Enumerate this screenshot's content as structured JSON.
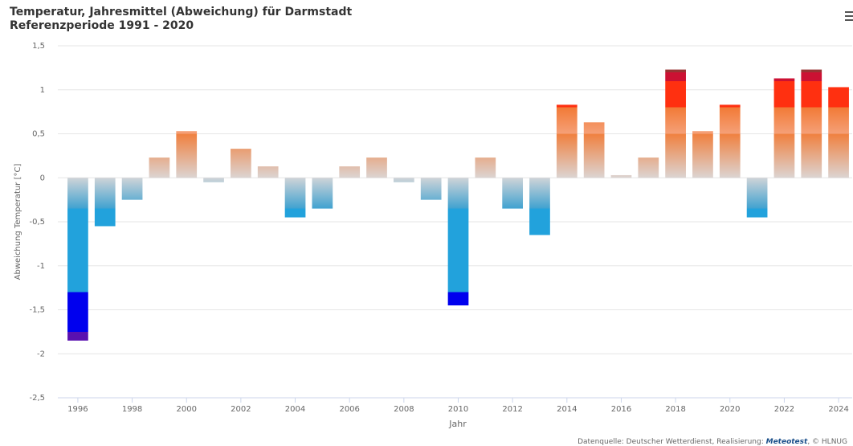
{
  "chart_data": {
    "type": "bar",
    "title": "Temperatur, Jahresmittel (Abweichung) für Darmstadt",
    "subtitle": "Referenzperiode 1991 - 2020",
    "y_label": "Abweichung Temperatur [°C]",
    "x_label": "Jahr",
    "credit": {
      "prefix": "Datenquelle: Deutscher Wetterdienst, Realisierung:",
      "link": "Meteotest",
      "suffix": ", © HLNUG"
    },
    "x": [
      1996,
      1997,
      1998,
      1999,
      2000,
      2001,
      2002,
      2003,
      2004,
      2005,
      2006,
      2007,
      2008,
      2009,
      2010,
      2011,
      2012,
      2013,
      2014,
      2015,
      2016,
      2017,
      2018,
      2019,
      2020,
      2021,
      2022,
      2023,
      2024
    ],
    "values": [
      -1.85,
      -0.55,
      -0.25,
      0.23,
      0.53,
      -0.05,
      0.33,
      0.13,
      -0.45,
      -0.35,
      0.13,
      0.23,
      -0.05,
      -0.25,
      -1.45,
      0.23,
      -0.35,
      -0.65,
      0.83,
      0.63,
      0.03,
      0.23,
      1.23,
      0.53,
      0.83,
      -0.45,
      1.13,
      1.23,
      1.03
    ],
    "xlim": [
      1995.5,
      2024.5
    ],
    "xticks": [
      1996,
      1998,
      2000,
      2002,
      2004,
      2006,
      2008,
      2010,
      2012,
      2014,
      2016,
      2018,
      2020,
      2022,
      2024
    ],
    "ylim": [
      -2.5,
      1.5
    ],
    "yticks": [
      {
        "value": 1.5,
        "label": "1,5"
      },
      1,
      {
        "value": 0.5,
        "label": "0,5"
      },
      0,
      {
        "value": -0.5,
        "label": "-0,5"
      },
      -1,
      {
        "value": -1.5,
        "label": "-1,5"
      },
      -2,
      {
        "value": -2.5,
        "label": "-2,5"
      }
    ],
    "grid": true,
    "color_stops": [
      {
        "at": 1.5,
        "color": "#993333"
      },
      {
        "at": 1.2,
        "color": "#993333"
      },
      {
        "at": 1.2,
        "color": "#cc1133"
      },
      {
        "at": 1.1,
        "color": "#cc1133"
      },
      {
        "at": 1.1,
        "color": "#ff3010"
      },
      {
        "at": 0.8,
        "color": "#ff3010"
      },
      {
        "at": 0.8,
        "color": "#f27a36"
      },
      {
        "at": 0.5,
        "color": "#f5a078"
      },
      {
        "at": 0.5,
        "color": "#f0803f"
      },
      {
        "at": 0,
        "color": "#dcd4d2"
      },
      {
        "at": 0,
        "color": "#cfd4d8"
      },
      {
        "at": -0.35,
        "color": "#40a2d0"
      },
      {
        "at": -0.35,
        "color": "#22a2dc"
      },
      {
        "at": -1.3,
        "color": "#22a2dc"
      },
      {
        "at": -1.3,
        "color": "#0000ee"
      },
      {
        "at": -1.75,
        "color": "#0000ee"
      },
      {
        "at": -1.75,
        "color": "#5a10b0"
      },
      {
        "at": -2.5,
        "color": "#5a10b0"
      }
    ]
  }
}
